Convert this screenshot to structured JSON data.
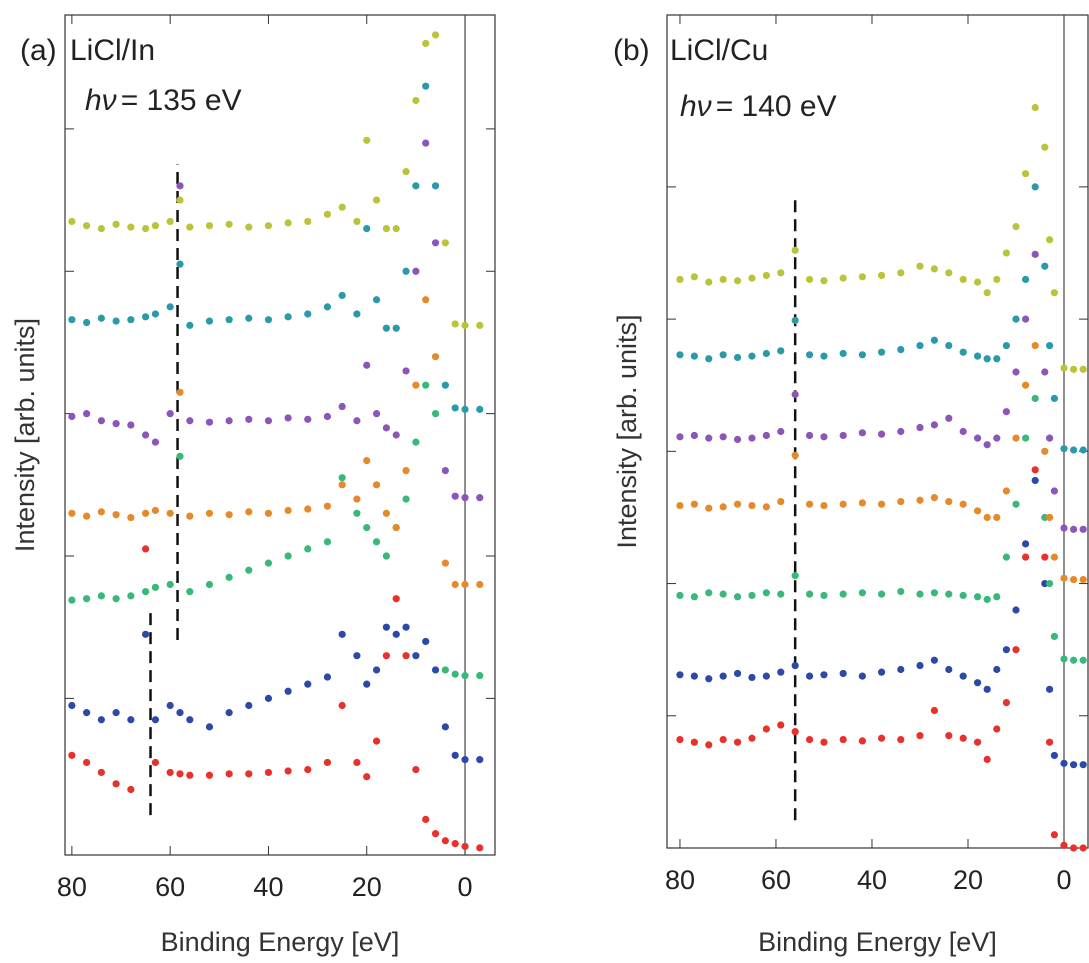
{
  "chart_data": [
    {
      "type": "scatter",
      "panel_label": "(a)",
      "title": "LiCl/In",
      "energy_symbol": "hν",
      "energy_value": "= 135 eV",
      "xlabel": "Binding Energy [eV]",
      "ylabel": "Intensity [arb. units]",
      "xlim": [
        81.4,
        -6.1
      ],
      "ylim": [
        -0.1,
        5.8
      ],
      "xticks": [
        80,
        60,
        40,
        20,
        0
      ],
      "yticks": [
        1,
        2,
        3,
        4,
        5
      ],
      "x": [
        80,
        77,
        74,
        71,
        68,
        65,
        63,
        60,
        58,
        56,
        52,
        48,
        44,
        40,
        36,
        32,
        28,
        25,
        22,
        20,
        18,
        16,
        14,
        12,
        10,
        8,
        6,
        4,
        2,
        0,
        -3
      ],
      "series": [
        {
          "color": "#e8302c",
          "values": [
            0.6,
            0.55,
            0.48,
            0.4,
            0.36,
            2.05,
            0.55,
            0.48,
            0.47,
            0.46,
            0.46,
            0.47,
            0.47,
            0.48,
            0.49,
            0.5,
            0.55,
            0.95,
            0.55,
            0.45,
            0.7,
            1.3,
            1.7,
            1.3,
            0.5,
            0.15,
            0.05,
            0.0,
            -0.02,
            -0.04,
            -0.05
          ]
        },
        {
          "color": "#2c49a8",
          "values": [
            0.95,
            0.9,
            0.85,
            0.9,
            0.85,
            1.45,
            0.85,
            0.95,
            0.9,
            0.85,
            0.8,
            0.9,
            0.95,
            1.0,
            1.05,
            1.1,
            1.15,
            1.45,
            1.3,
            1.1,
            1.2,
            1.5,
            1.45,
            1.5,
            1.3,
            1.4,
            1.2,
            0.8,
            0.6,
            0.57,
            0.57
          ]
        },
        {
          "color": "#3ab87a",
          "values": [
            1.69,
            1.7,
            1.72,
            1.7,
            1.72,
            1.75,
            1.78,
            1.8,
            2.7,
            1.75,
            1.8,
            1.85,
            1.9,
            1.95,
            2.0,
            2.05,
            2.1,
            2.55,
            2.3,
            2.2,
            2.1,
            2.0,
            2.2,
            2.4,
            2.8,
            3.2,
            3.0,
            1.2,
            1.17,
            1.16,
            1.16
          ]
        },
        {
          "color": "#e6892a",
          "values": [
            2.3,
            2.28,
            2.31,
            2.29,
            2.27,
            2.3,
            2.32,
            2.3,
            3.15,
            2.28,
            2.3,
            2.29,
            2.31,
            2.3,
            2.32,
            2.33,
            2.35,
            2.5,
            2.4,
            2.67,
            2.5,
            2.3,
            2.2,
            2.6,
            3.2,
            3.8,
            3.4,
            1.95,
            1.8,
            1.8,
            1.8
          ]
        },
        {
          "color": "#8c55b8",
          "values": [
            2.98,
            3.0,
            2.95,
            2.93,
            2.92,
            2.85,
            2.8,
            3.0,
            4.6,
            2.95,
            2.94,
            2.95,
            2.96,
            2.95,
            2.97,
            2.96,
            2.98,
            3.05,
            2.95,
            3.34,
            3.0,
            2.9,
            2.85,
            3.3,
            4.0,
            4.9,
            4.2,
            2.6,
            2.42,
            2.41,
            2.41
          ]
        },
        {
          "color": "#2a9aab",
          "values": [
            3.66,
            3.64,
            3.67,
            3.65,
            3.66,
            3.68,
            3.7,
            3.75,
            4.05,
            3.62,
            3.65,
            3.66,
            3.67,
            3.66,
            3.68,
            3.7,
            3.75,
            3.83,
            3.7,
            4.3,
            3.8,
            3.6,
            3.6,
            4.0,
            4.6,
            5.3,
            4.6,
            3.2,
            3.04,
            3.03,
            3.03
          ]
        },
        {
          "color": "#b9c43a",
          "values": [
            4.35,
            4.32,
            4.3,
            4.33,
            4.31,
            4.3,
            4.32,
            4.35,
            4.5,
            4.31,
            4.32,
            4.33,
            4.31,
            4.32,
            4.34,
            4.35,
            4.4,
            4.45,
            4.35,
            4.92,
            4.5,
            4.3,
            4.3,
            4.7,
            5.2,
            5.6,
            5.66,
            4.2,
            3.63,
            3.62,
            3.62
          ]
        }
      ],
      "vlines": [
        {
          "x": 64,
          "y": [
            0.18,
            1.62
          ],
          "style": "dashed"
        },
        {
          "x": 58.5,
          "y": [
            1.41,
            4.75
          ],
          "style": "dashed"
        },
        {
          "x": 0,
          "style": "solid"
        }
      ]
    },
    {
      "type": "scatter",
      "panel_label": "(b)",
      "title": "LiCl/Cu",
      "energy_symbol": "hν",
      "energy_value": "= 140 eV",
      "xlabel": "Binding Energy [eV]",
      "ylabel": "Intensity [arb. units]",
      "xlim": [
        82.7,
        -5
      ],
      "ylim": [
        0,
        6.3
      ],
      "xticks": [
        80,
        60,
        40,
        20,
        0
      ],
      "yticks": [
        1,
        2,
        3,
        4,
        5
      ],
      "x": [
        80,
        77,
        74,
        71,
        68,
        65,
        62,
        59,
        56,
        53,
        50,
        46,
        42,
        38,
        34,
        30,
        27,
        24,
        21,
        18,
        16,
        14,
        12,
        10,
        8,
        6,
        4,
        3,
        2,
        0,
        -2,
        -4
      ],
      "series": [
        {
          "color": "#e8302c",
          "values": [
            0.82,
            0.8,
            0.78,
            0.82,
            0.8,
            0.83,
            0.9,
            0.93,
            0.88,
            0.82,
            0.8,
            0.82,
            0.81,
            0.83,
            0.82,
            0.85,
            1.04,
            0.85,
            0.83,
            0.8,
            0.67,
            0.9,
            1.1,
            1.5,
            2.2,
            2.86,
            2.2,
            0.8,
            0.1,
            0.02,
            0.0,
            0.0
          ]
        },
        {
          "color": "#2c49a8",
          "values": [
            1.31,
            1.3,
            1.28,
            1.3,
            1.32,
            1.29,
            1.3,
            1.33,
            1.38,
            1.3,
            1.31,
            1.32,
            1.3,
            1.33,
            1.35,
            1.38,
            1.42,
            1.35,
            1.3,
            1.25,
            1.2,
            1.35,
            1.5,
            1.8,
            2.3,
            2.78,
            2.0,
            1.2,
            0.7,
            0.64,
            0.63,
            0.63
          ]
        },
        {
          "color": "#3ab87a",
          "values": [
            1.91,
            1.9,
            1.93,
            1.92,
            1.9,
            1.91,
            1.93,
            1.92,
            2.06,
            1.92,
            1.91,
            1.92,
            1.93,
            1.92,
            1.94,
            1.92,
            1.93,
            1.92,
            1.91,
            1.9,
            1.88,
            1.9,
            2.2,
            2.6,
            3.1,
            3.4,
            2.5,
            2.0,
            1.6,
            1.43,
            1.42,
            1.42
          ]
        },
        {
          "color": "#e6892a",
          "values": [
            2.59,
            2.6,
            2.57,
            2.58,
            2.6,
            2.59,
            2.58,
            2.62,
            2.97,
            2.6,
            2.59,
            2.6,
            2.61,
            2.6,
            2.62,
            2.63,
            2.65,
            2.62,
            2.6,
            2.55,
            2.5,
            2.5,
            2.7,
            3.1,
            3.5,
            3.8,
            3.0,
            2.5,
            2.2,
            2.04,
            2.03,
            2.03
          ]
        },
        {
          "color": "#8c55b8",
          "values": [
            3.11,
            3.12,
            3.1,
            3.11,
            3.09,
            3.1,
            3.12,
            3.15,
            3.43,
            3.12,
            3.11,
            3.12,
            3.14,
            3.13,
            3.15,
            3.18,
            3.2,
            3.25,
            3.15,
            3.1,
            3.05,
            3.1,
            3.3,
            3.6,
            4.0,
            4.49,
            3.6,
            3.1,
            2.7,
            2.42,
            2.41,
            2.41
          ]
        },
        {
          "color": "#2a9aab",
          "values": [
            3.73,
            3.72,
            3.7,
            3.73,
            3.71,
            3.72,
            3.74,
            3.76,
            3.99,
            3.73,
            3.72,
            3.74,
            3.73,
            3.75,
            3.77,
            3.8,
            3.84,
            3.8,
            3.75,
            3.72,
            3.7,
            3.7,
            3.8,
            4.0,
            4.3,
            5.0,
            4.4,
            3.8,
            3.4,
            3.02,
            3.01,
            3.01
          ]
        },
        {
          "color": "#b9c43a",
          "values": [
            4.3,
            4.32,
            4.28,
            4.3,
            4.29,
            4.31,
            4.33,
            4.35,
            4.52,
            4.3,
            4.29,
            4.31,
            4.32,
            4.33,
            4.35,
            4.4,
            4.38,
            4.35,
            4.3,
            4.28,
            4.2,
            4.3,
            4.5,
            4.7,
            5.1,
            5.6,
            5.3,
            4.6,
            4.2,
            3.63,
            3.62,
            3.62
          ]
        }
      ],
      "vlines": [
        {
          "x": 56,
          "y": [
            0.21,
            4.94
          ],
          "style": "dashed"
        },
        {
          "x": 0,
          "style": "solid"
        }
      ]
    }
  ]
}
